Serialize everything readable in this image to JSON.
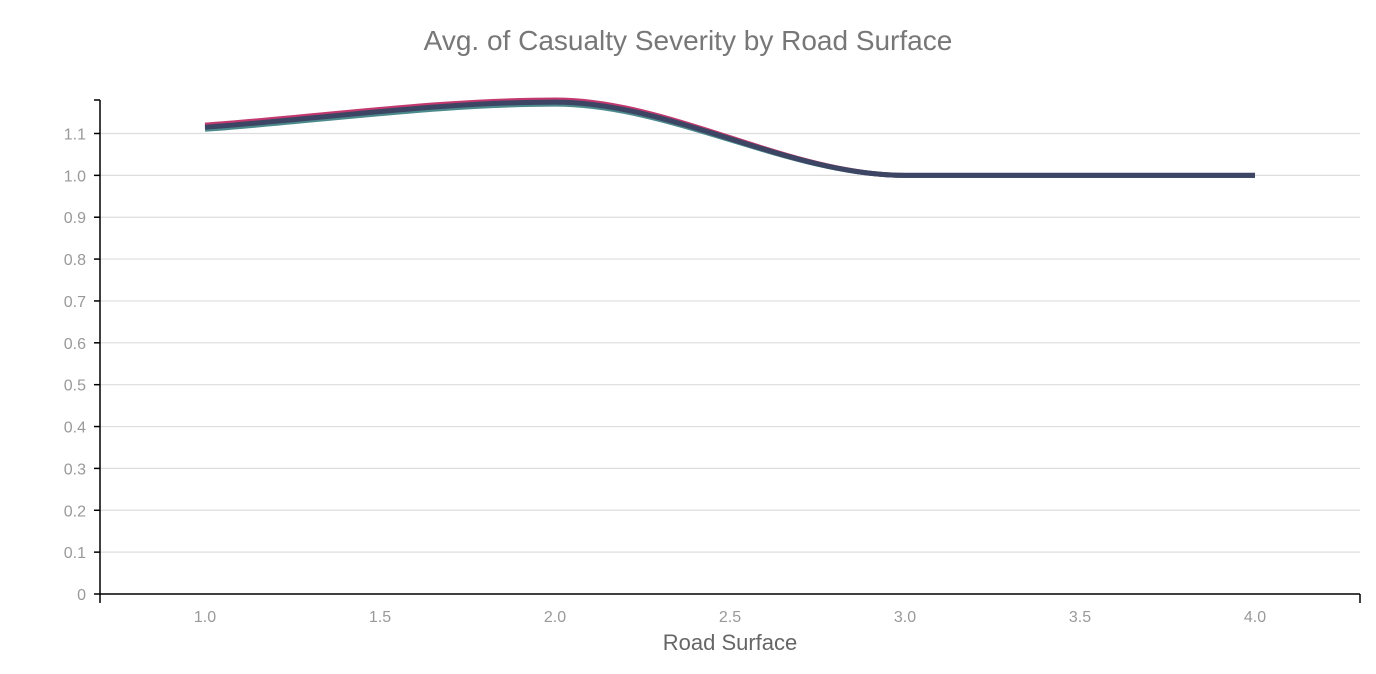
{
  "chart_data": {
    "type": "line",
    "title": "Avg. of Casualty Severity by Road Surface",
    "xlabel": "Road Surface",
    "ylabel": "",
    "xlim": [
      0.7,
      4.3
    ],
    "ylim": [
      0,
      1.18
    ],
    "x_ticks": [
      1.0,
      1.5,
      2.0,
      2.5,
      3.0,
      3.5,
      4.0
    ],
    "x_tick_labels": [
      "1.0",
      "1.5",
      "2.0",
      "2.5",
      "3.0",
      "3.5",
      "4.0"
    ],
    "y_ticks": [
      0,
      0.1,
      0.2,
      0.3,
      0.4,
      0.5,
      0.6,
      0.7,
      0.8,
      0.9,
      1.0,
      1.1
    ],
    "y_tick_labels": [
      "0",
      "0.1",
      "0.2",
      "0.3",
      "0.4",
      "0.5",
      "0.6",
      "0.7",
      "0.8",
      "0.9",
      "1.0",
      "1.1"
    ],
    "grid": true,
    "interpolation": "smooth",
    "series": [
      {
        "color": "#c2386f",
        "x": [
          1,
          2,
          3,
          4
        ],
        "values": [
          1.12,
          1.18,
          1.0,
          1.0
        ]
      },
      {
        "color": "#4d8a8c",
        "x": [
          1,
          2,
          3,
          4
        ],
        "values": [
          1.11,
          1.17,
          1.0,
          1.0
        ]
      },
      {
        "color": "#3c4664",
        "x": [
          1,
          2,
          3,
          4
        ],
        "values": [
          1.115,
          1.175,
          1.0,
          1.0
        ]
      }
    ],
    "colors": {
      "title": "#777777",
      "tick_label": "#999999",
      "axis_label": "#666666",
      "grid": "#dddddd",
      "axis": "#000000"
    }
  }
}
